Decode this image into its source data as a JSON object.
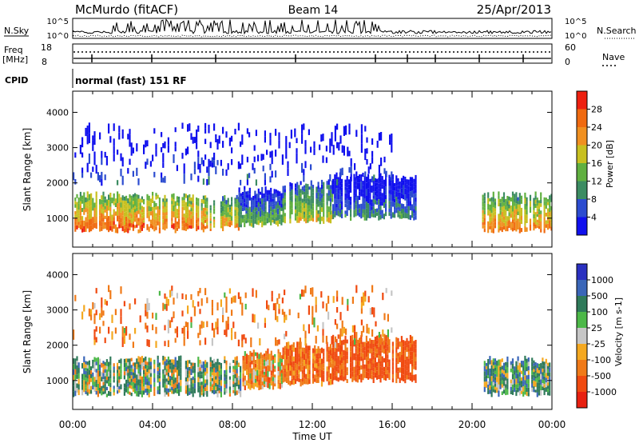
{
  "header": {
    "station": "McMurdo (fitACF)",
    "beam": "Beam 14",
    "date": "25/Apr/2013"
  },
  "top_panels": {
    "nsky_label": "N.Sky",
    "nsearch_label": "N.Search",
    "noise_ticks_left": [
      "10^5",
      "10^0"
    ],
    "noise_ticks_right": [
      "10^5",
      "10^0"
    ],
    "freq_label": "Freq",
    "freq_unit": "[MHz]",
    "freq_ticks": [
      "18",
      "8"
    ],
    "nave_label": "Nave",
    "nave_ticks": [
      "60",
      "0"
    ],
    "cpid_label": "CPID",
    "cpid_value": "normal (fast) 151 RF"
  },
  "colors": {
    "power_scale": [
      "#1010ee",
      "#2c4cd0",
      "#3c8c62",
      "#60b040",
      "#c8c020",
      "#f09020",
      "#f06a10",
      "#ee2010"
    ],
    "velocity_scale": [
      "#e82010",
      "#f04a10",
      "#f07a18",
      "#f4a820",
      "#c6c6c6",
      "#4cb848",
      "#2f7a5a",
      "#3a66b8",
      "#2a30c0"
    ]
  },
  "chart_data": [
    {
      "type": "heatmap",
      "title": "",
      "xlabel": "Time UT",
      "ylabel": "Slant Range [km]",
      "x_range_hours": [
        0,
        24
      ],
      "y_range_km": [
        180,
        4600
      ],
      "x_tick_labels": [
        "00:00",
        "04:00",
        "08:00",
        "12:00",
        "16:00",
        "20:00",
        "00:00"
      ],
      "y_tick_labels": [
        "1000",
        "2000",
        "3000",
        "4000"
      ],
      "colorbar": {
        "label": "Power [dB]",
        "tick_labels": [
          "4",
          "8",
          "12",
          "16",
          "20",
          "24",
          "28"
        ],
        "range": [
          0,
          32
        ]
      },
      "echo_regions": [
        {
          "t": [
            0.0,
            6.6
          ],
          "range_km": [
            650,
            1650
          ],
          "level_db": 26
        },
        {
          "t": [
            6.6,
            8.3
          ],
          "range_km": [
            700,
            1550
          ],
          "level_db": 22
        },
        {
          "t": [
            8.3,
            10.5
          ],
          "range_km": [
            800,
            1800
          ],
          "level_db": 14
        },
        {
          "t": [
            10.5,
            13.0
          ],
          "range_km": [
            900,
            2000
          ],
          "level_db": 18
        },
        {
          "t": [
            13.0,
            17.2
          ],
          "range_km": [
            1000,
            2200
          ],
          "level_db": 10
        },
        {
          "t": [
            20.5,
            24.0
          ],
          "range_km": [
            650,
            1650
          ],
          "level_db": 24
        },
        {
          "t": [
            0.0,
            16.0
          ],
          "range_km": [
            2000,
            3600
          ],
          "level_db": 6
        }
      ]
    },
    {
      "type": "heatmap",
      "title": "",
      "xlabel": "Time UT",
      "ylabel": "Slant Range [km]",
      "x_range_hours": [
        0,
        24
      ],
      "y_range_km": [
        180,
        4600
      ],
      "x_tick_labels": [
        "00:00",
        "04:00",
        "08:00",
        "12:00",
        "16:00",
        "20:00",
        "00:00"
      ],
      "y_tick_labels": [
        "1000",
        "2000",
        "3000",
        "4000"
      ],
      "colorbar": {
        "label": "Velocity [m s-1]",
        "tick_labels": [
          "1000",
          "500",
          "100",
          "25",
          "-25",
          "-100",
          "-500",
          "-1000"
        ]
      },
      "echo_regions": [
        {
          "t": [
            0.0,
            8.5
          ],
          "range_km": [
            600,
            1600
          ],
          "velocity": 100
        },
        {
          "t": [
            8.5,
            10.5
          ],
          "range_km": [
            800,
            1800
          ],
          "velocity": -150
        },
        {
          "t": [
            10.5,
            13.0
          ],
          "range_km": [
            900,
            2000
          ],
          "velocity": -300
        },
        {
          "t": [
            13.0,
            17.2
          ],
          "range_km": [
            1000,
            2200
          ],
          "velocity": -400
        },
        {
          "t": [
            20.5,
            24.0
          ],
          "range_km": [
            600,
            1600
          ],
          "velocity": 150
        },
        {
          "t": [
            0.0,
            16.0
          ],
          "range_km": [
            2000,
            3600
          ],
          "velocity": -200
        }
      ]
    }
  ]
}
